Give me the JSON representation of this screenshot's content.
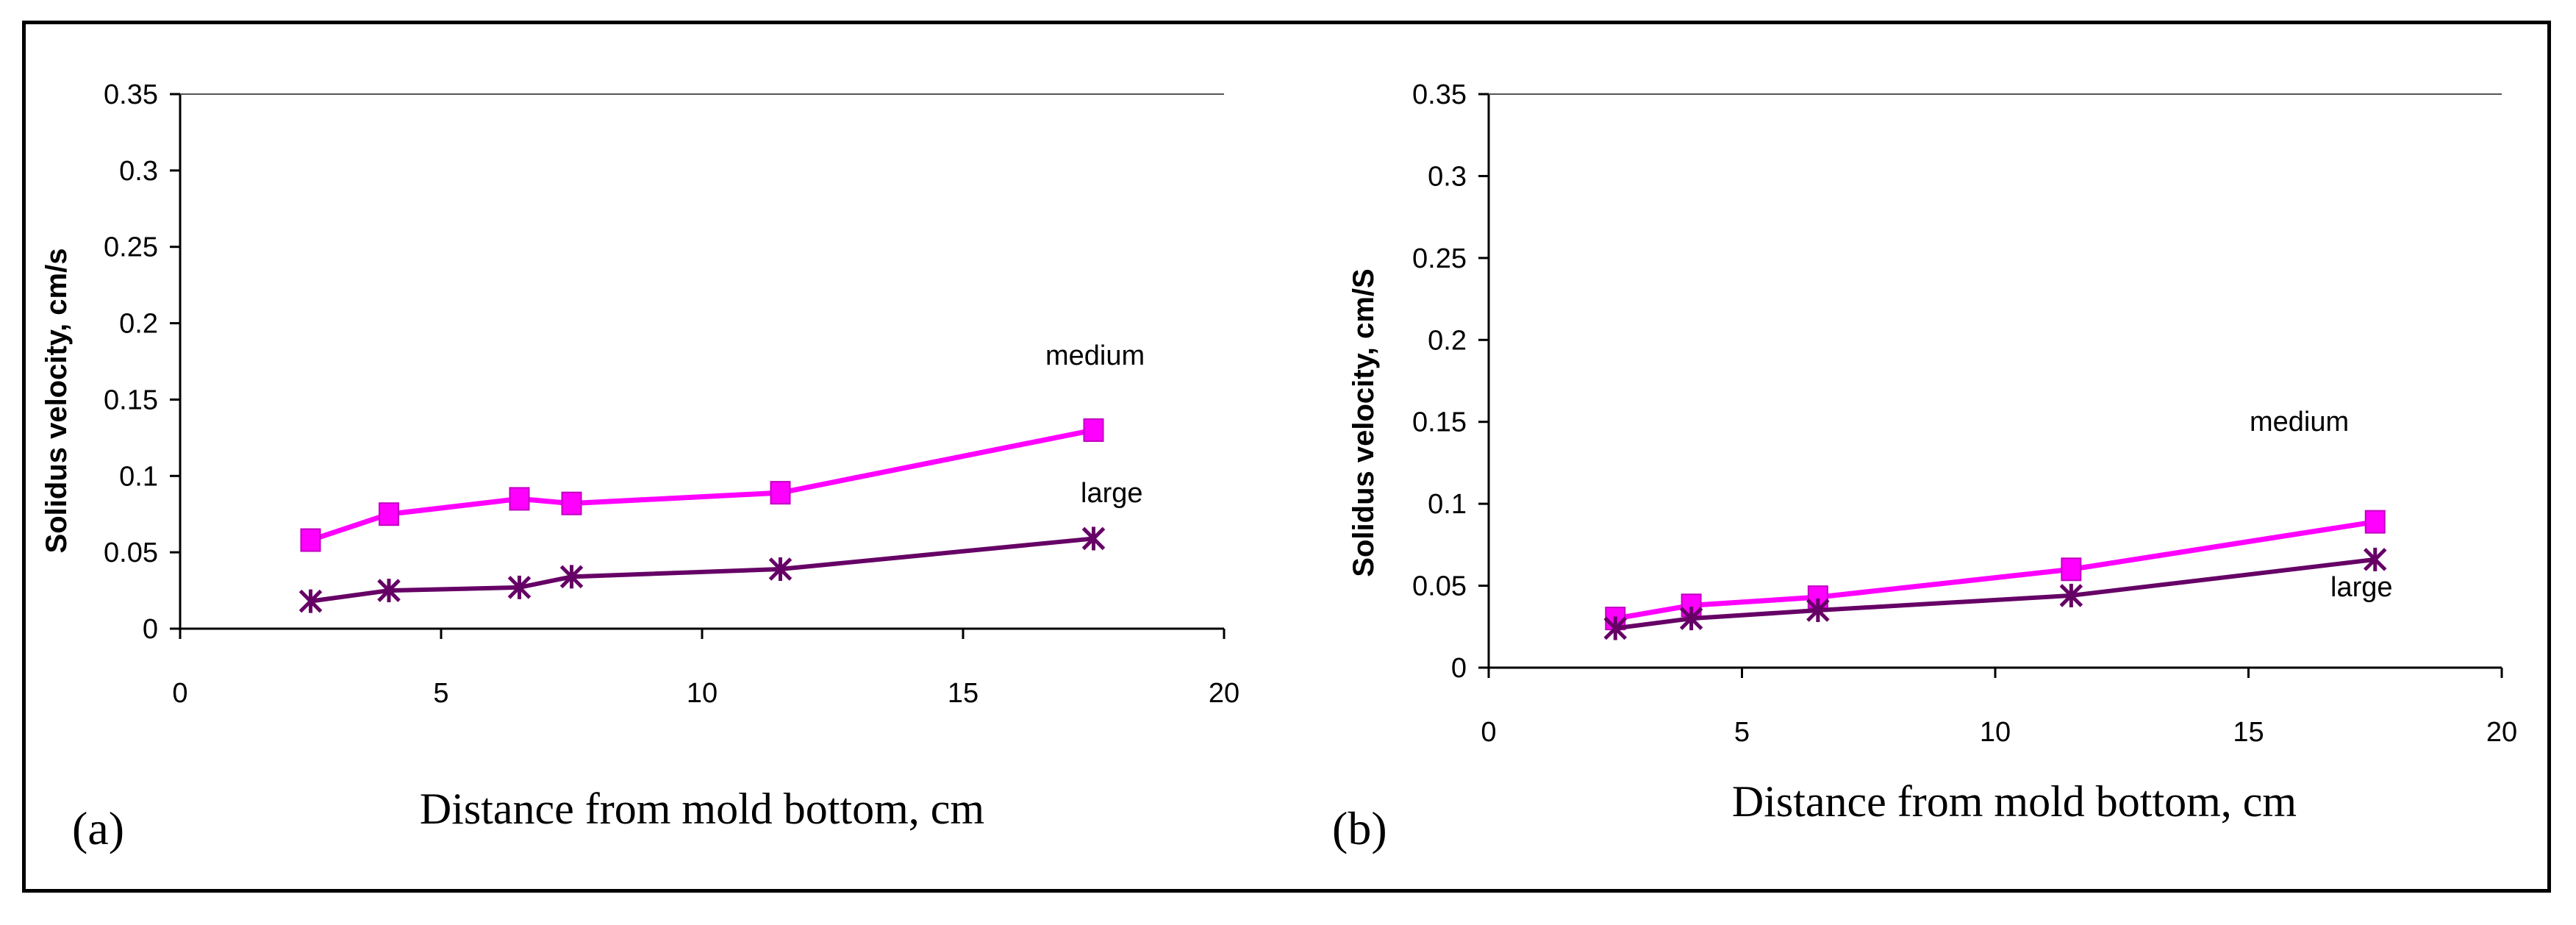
{
  "chart_data": [
    {
      "type": "line",
      "panel_label": "(a)",
      "xlabel": "Distance from mold bottom, cm",
      "ylabel": "Solidus velocity, cm/s",
      "xlim": [
        0,
        20
      ],
      "ylim": [
        0,
        0.35
      ],
      "xticks": [
        "0",
        "5",
        "10",
        "15",
        "20"
      ],
      "yticks": [
        "0",
        "0.05",
        "0.1",
        "0.15",
        "0.2",
        "0.25",
        "0.3",
        "0.35"
      ],
      "grid": false,
      "series": [
        {
          "name": "medium",
          "color": "#ff00ff",
          "marker": "square",
          "x": [
            2.5,
            4,
            6.5,
            7.5,
            11.5,
            17.5
          ],
          "y": [
            0.058,
            0.075,
            0.085,
            0.082,
            0.089,
            0.13
          ]
        },
        {
          "name": "large",
          "color": "#660066",
          "marker": "star",
          "x": [
            2.5,
            4,
            6.5,
            7.5,
            11.5,
            17.5
          ],
          "y": [
            0.018,
            0.025,
            0.027,
            0.034,
            0.039,
            0.059
          ]
        }
      ]
    },
    {
      "type": "line",
      "panel_label": "(b)",
      "xlabel": "Distance from mold bottom, cm",
      "ylabel": "Solidus velocity, cm/S",
      "xlim": [
        0,
        20
      ],
      "ylim": [
        0,
        0.35
      ],
      "xticks": [
        "0",
        "5",
        "10",
        "15",
        "20"
      ],
      "yticks": [
        "0",
        "0.05",
        "0.1",
        "0.15",
        "0.2",
        "0.25",
        "0.3",
        "0.35"
      ],
      "grid": false,
      "series": [
        {
          "name": "medium",
          "color": "#ff00ff",
          "marker": "square",
          "x": [
            2.5,
            4,
            6.5,
            11.5,
            17.5
          ],
          "y": [
            0.03,
            0.038,
            0.043,
            0.06,
            0.089
          ]
        },
        {
          "name": "large",
          "color": "#660066",
          "marker": "star",
          "x": [
            2.5,
            4,
            6.5,
            11.5,
            17.5
          ],
          "y": [
            0.024,
            0.03,
            0.035,
            0.044,
            0.066
          ]
        }
      ]
    }
  ]
}
